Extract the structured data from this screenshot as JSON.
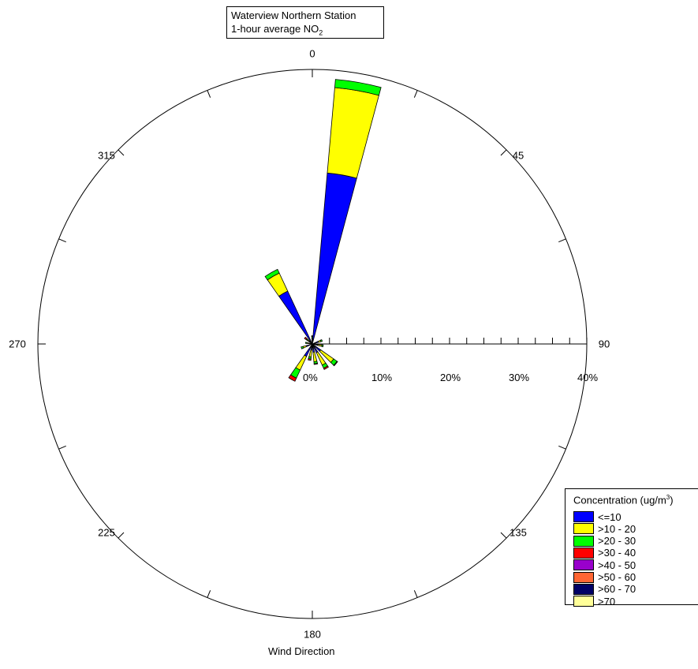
{
  "chart_data": {
    "type": "wind-rose",
    "title": [
      "Waterview Northern Station",
      "1-hour average NO",
      "2"
    ],
    "xlabel": "Wind Direction",
    "direction_labels": [
      "0",
      "45",
      "90",
      "135",
      "180",
      "225",
      "270",
      "315"
    ],
    "radial_axis": {
      "direction_deg": 90,
      "ticks": [
        0,
        10,
        20,
        30,
        40
      ],
      "tick_labels": [
        "0%",
        "10%",
        "20%",
        "30%",
        "40%"
      ],
      "max": 40
    },
    "legend": {
      "title": "Concentration (ug/m",
      "title_sup": "3",
      "title_end": ")",
      "placement": "bottom-right",
      "categories": [
        "<=10",
        ">10 - 20",
        ">20 - 30",
        ">30 - 40",
        ">40 - 50",
        ">50 - 60",
        ">60 - 70",
        ">70"
      ],
      "colors": [
        "#0000FF",
        "#FFFF00",
        "#00FF00",
        "#FF0000",
        "#9900CC",
        "#FF6633",
        "#000066",
        "#FFFF99"
      ]
    },
    "sector_width_deg": 10,
    "sectors": [
      {
        "direction": 0,
        "values": [
          0.5,
          0.3,
          0.3,
          0.1,
          0,
          0,
          0,
          0
        ]
      },
      {
        "direction": 10,
        "values": [
          25,
          12.5,
          1.2,
          0,
          0,
          0,
          0,
          0
        ]
      },
      {
        "direction": 70,
        "values": [
          0.9,
          0.4,
          0.2,
          0,
          0,
          0,
          0,
          0
        ]
      },
      {
        "direction": 100,
        "values": [
          0.8,
          0.6,
          0.2,
          0,
          0,
          0,
          0,
          0
        ]
      },
      {
        "direction": 130,
        "values": [
          1.5,
          2.3,
          0.6,
          0.1,
          0,
          0,
          0,
          0
        ]
      },
      {
        "direction": 150,
        "values": [
          1.4,
          2.0,
          0.5,
          0.2,
          0,
          0,
          0,
          0
        ]
      },
      {
        "direction": 170,
        "values": [
          1.2,
          1.4,
          0.3,
          0.1,
          0,
          0,
          0,
          0
        ]
      },
      {
        "direction": 190,
        "values": [
          0.9,
          1.0,
          0.3,
          0.2,
          0,
          0,
          0,
          0
        ]
      },
      {
        "direction": 210,
        "values": [
          2.0,
          2.2,
          1.3,
          0.5,
          0,
          0,
          0,
          0
        ]
      },
      {
        "direction": 250,
        "values": [
          0.9,
          0.5,
          0.3,
          0,
          0,
          0,
          0,
          0
        ]
      },
      {
        "direction": 280,
        "values": [
          0.5,
          0.3,
          0.2,
          0,
          0,
          0,
          0,
          0
        ]
      },
      {
        "direction": 310,
        "values": [
          0.6,
          0.3,
          0.2,
          0.3,
          0,
          0,
          0,
          0
        ]
      },
      {
        "direction": 330,
        "values": [
          8.5,
          2.9,
          0.6,
          0,
          0,
          0,
          0,
          0
        ]
      }
    ]
  }
}
